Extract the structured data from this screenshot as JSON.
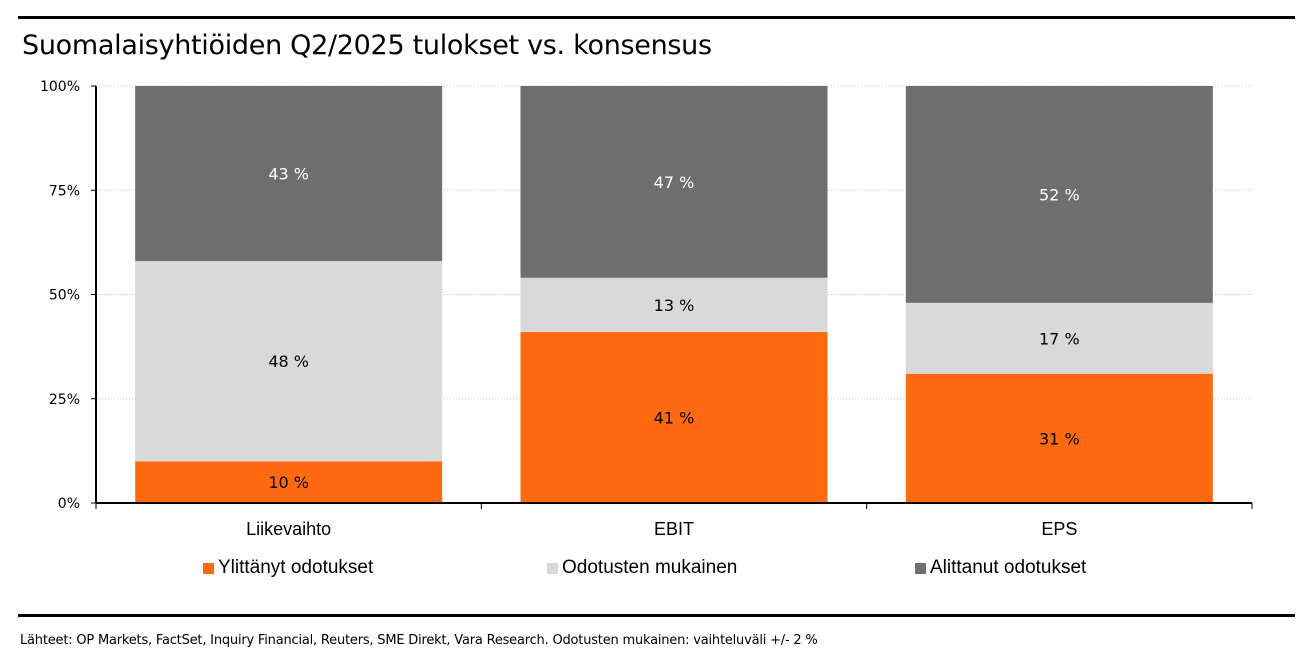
{
  "title": "Suomalaisyhtiöiden Q2/2025 tulokset vs. konsensus",
  "footer": "Lähteet: OP Markets, FactSet, Inquiry Financial, Reuters, SME Direkt, Vara Research. Odotusten mukainen: vaihteluväli +/- 2 %",
  "chart_data": {
    "type": "bar",
    "stacked": true,
    "categories": [
      "Liikevaihto",
      "EBIT",
      "EPS"
    ],
    "series": [
      {
        "name": "Ylittänyt odotukset",
        "color": "#FF6A10",
        "label_color": "#000000",
        "values": [
          10,
          41,
          31
        ]
      },
      {
        "name": "Odotusten mukainen",
        "color": "#D9D9D9",
        "label_color": "#000000",
        "values": [
          48,
          13,
          17
        ]
      },
      {
        "name": "Alittanut odotukset",
        "color": "#6E6E6E",
        "label_color": "#FFFFFF",
        "values": [
          43,
          47,
          52
        ]
      }
    ],
    "data_labels": [
      [
        "10 %",
        "41 %",
        "31 %"
      ],
      [
        "48 %",
        "13 %",
        "17 %"
      ],
      [
        "43 %",
        "47 %",
        "52 %"
      ]
    ],
    "yticks": [
      "0%",
      "25%",
      "50%",
      "75%",
      "100%"
    ],
    "ylim": [
      0,
      100
    ],
    "grid": true,
    "legend_position": "bottom"
  }
}
